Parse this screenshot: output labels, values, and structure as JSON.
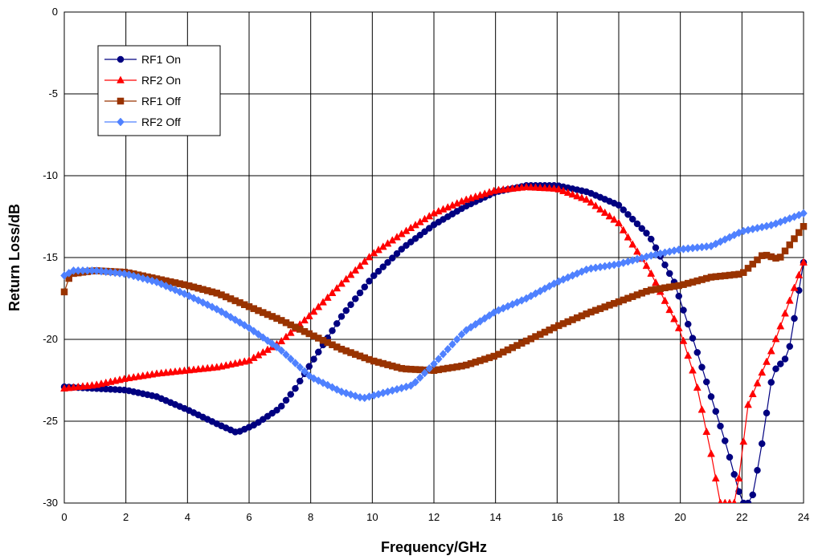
{
  "chart_data": {
    "type": "line",
    "title": "",
    "xlabel": "Frequency/GHz",
    "ylabel": "Return Loss/dB",
    "xlim": [
      0,
      24
    ],
    "ylim": [
      -30,
      0
    ],
    "xticks": [
      0,
      2,
      4,
      6,
      8,
      10,
      12,
      14,
      16,
      18,
      20,
      22,
      24
    ],
    "yticks": [
      0,
      -5,
      -10,
      -15,
      -20,
      -25,
      -30
    ],
    "grid": true,
    "legend_position": "top-left",
    "series": [
      {
        "name": "RF1 On",
        "color": "#000080",
        "marker": "circle",
        "points": [
          [
            0,
            -22.9
          ],
          [
            1,
            -23.0
          ],
          [
            2,
            -23.1
          ],
          [
            3,
            -23.5
          ],
          [
            4,
            -24.3
          ],
          [
            5,
            -25.2
          ],
          [
            5.6,
            -25.7
          ],
          [
            6.2,
            -25.2
          ],
          [
            7,
            -24.2
          ],
          [
            7.5,
            -23.0
          ],
          [
            8,
            -21.5
          ],
          [
            9,
            -18.6
          ],
          [
            10,
            -16.2
          ],
          [
            11,
            -14.4
          ],
          [
            12,
            -13.0
          ],
          [
            13,
            -11.9
          ],
          [
            14,
            -11.0
          ],
          [
            15,
            -10.6
          ],
          [
            16,
            -10.6
          ],
          [
            17,
            -11.0
          ],
          [
            18,
            -11.8
          ],
          [
            19,
            -13.7
          ],
          [
            19.8,
            -16.5
          ],
          [
            20.5,
            -20.5
          ],
          [
            21,
            -23.5
          ],
          [
            21.5,
            -26.5
          ],
          [
            22,
            -30.0
          ],
          [
            22.3,
            -30.0
          ],
          [
            22.6,
            -27.0
          ],
          [
            23,
            -22.0
          ],
          [
            23.5,
            -21.0
          ],
          [
            24,
            -15.3
          ]
        ]
      },
      {
        "name": "RF2 On",
        "color": "#FF0000",
        "marker": "triangle",
        "points": [
          [
            0,
            -23.0
          ],
          [
            1,
            -22.8
          ],
          [
            2,
            -22.4
          ],
          [
            3,
            -22.1
          ],
          [
            4,
            -21.9
          ],
          [
            5,
            -21.7
          ],
          [
            6,
            -21.3
          ],
          [
            7,
            -20.2
          ],
          [
            8,
            -18.5
          ],
          [
            9,
            -16.6
          ],
          [
            10,
            -14.8
          ],
          [
            11,
            -13.5
          ],
          [
            12,
            -12.3
          ],
          [
            13,
            -11.5
          ],
          [
            14,
            -10.9
          ],
          [
            15,
            -10.7
          ],
          [
            16,
            -10.8
          ],
          [
            17,
            -11.5
          ],
          [
            18,
            -12.9
          ],
          [
            19,
            -15.8
          ],
          [
            20,
            -19.5
          ],
          [
            20.5,
            -22.5
          ],
          [
            21,
            -27.0
          ],
          [
            21.3,
            -30.0
          ],
          [
            21.8,
            -30.0
          ],
          [
            22.2,
            -24.0
          ],
          [
            23,
            -20.5
          ],
          [
            24,
            -15.3
          ]
        ]
      },
      {
        "name": "RF1 Off",
        "color": "#993300",
        "marker": "square",
        "points": [
          [
            0,
            -17.1
          ],
          [
            0.2,
            -16.0
          ],
          [
            1,
            -15.8
          ],
          [
            2,
            -15.9
          ],
          [
            3,
            -16.3
          ],
          [
            4,
            -16.7
          ],
          [
            5,
            -17.2
          ],
          [
            6,
            -18.0
          ],
          [
            7,
            -18.8
          ],
          [
            8,
            -19.7
          ],
          [
            9,
            -20.6
          ],
          [
            10,
            -21.3
          ],
          [
            11,
            -21.8
          ],
          [
            12,
            -21.9
          ],
          [
            13,
            -21.6
          ],
          [
            14,
            -21.0
          ],
          [
            15,
            -20.1
          ],
          [
            16,
            -19.2
          ],
          [
            17,
            -18.4
          ],
          [
            18,
            -17.7
          ],
          [
            19,
            -17.0
          ],
          [
            20,
            -16.7
          ],
          [
            21,
            -16.2
          ],
          [
            22,
            -16.0
          ],
          [
            22.7,
            -14.8
          ],
          [
            23.2,
            -15.1
          ],
          [
            24,
            -13.1
          ]
        ]
      },
      {
        "name": "RF2 Off",
        "color": "#4F81FF",
        "marker": "diamond",
        "points": [
          [
            0,
            -16.1
          ],
          [
            0.3,
            -15.8
          ],
          [
            1,
            -15.8
          ],
          [
            2,
            -16.0
          ],
          [
            3,
            -16.5
          ],
          [
            4,
            -17.3
          ],
          [
            5,
            -18.2
          ],
          [
            6,
            -19.3
          ],
          [
            7,
            -20.6
          ],
          [
            8,
            -22.3
          ],
          [
            9,
            -23.2
          ],
          [
            9.7,
            -23.6
          ],
          [
            10.5,
            -23.2
          ],
          [
            11.3,
            -22.8
          ],
          [
            12,
            -21.5
          ],
          [
            13,
            -19.5
          ],
          [
            14,
            -18.3
          ],
          [
            15,
            -17.5
          ],
          [
            16,
            -16.5
          ],
          [
            17,
            -15.7
          ],
          [
            18,
            -15.4
          ],
          [
            19,
            -14.9
          ],
          [
            20,
            -14.5
          ],
          [
            21,
            -14.3
          ],
          [
            22,
            -13.4
          ],
          [
            23,
            -13.0
          ],
          [
            24,
            -12.3
          ]
        ]
      }
    ]
  }
}
